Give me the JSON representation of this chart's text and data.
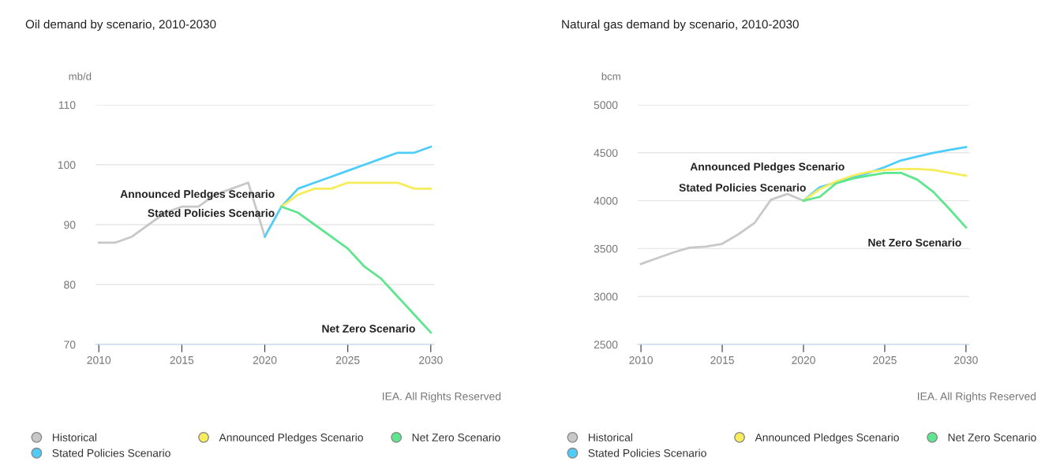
{
  "chart_data": [
    {
      "type": "line",
      "title": "Oil demand by scenario, 2010-2030",
      "ylabel": "mb/d",
      "xlim": [
        2009.8,
        2030.2
      ],
      "xticks": [
        2010,
        2015,
        2020,
        2025,
        2030
      ],
      "ylim": [
        70,
        110
      ],
      "yticks": [
        70,
        80,
        90,
        100,
        110
      ],
      "grid": "y",
      "legend": "bottom",
      "marker": "none",
      "line_style": "solid",
      "series": [
        {
          "name": "Historical",
          "color": "#c8c8c8",
          "x": [
            2010,
            2011,
            2012,
            2013,
            2014,
            2015,
            2016,
            2017,
            2018,
            2019,
            2020
          ],
          "values": [
            87,
            87,
            88,
            90,
            92,
            93,
            93,
            95,
            96,
            97,
            88
          ]
        },
        {
          "name": "Stated Policies Scenario",
          "color": "#4fcdfa",
          "x": [
            2020,
            2021,
            2022,
            2023,
            2024,
            2025,
            2026,
            2027,
            2028,
            2029,
            2030
          ],
          "values": [
            88,
            93,
            96,
            97,
            98,
            99,
            100,
            101,
            102,
            102,
            103
          ]
        },
        {
          "name": "Announced Pledges Scenario",
          "color": "#f7ec5a",
          "x": [
            2021,
            2022,
            2023,
            2024,
            2025,
            2026,
            2027,
            2028,
            2029,
            2030
          ],
          "values": [
            93,
            95,
            96,
            96,
            97,
            97,
            97,
            97,
            96,
            96
          ]
        },
        {
          "name": "Net Zero Scenario",
          "color": "#5ee68f",
          "x": [
            2021,
            2022,
            2023,
            2024,
            2025,
            2026,
            2027,
            2028,
            2029,
            2030
          ],
          "values": [
            93,
            92,
            90,
            88,
            86,
            83,
            81,
            78,
            75,
            72
          ]
        }
      ],
      "annotations": [
        {
          "text": "Announced Pledges Scenario",
          "x": 2021,
          "y": 93
        },
        {
          "text": "Stated Policies Scenario",
          "x": 2021,
          "y": 93
        },
        {
          "text": "Net Zero Scenario",
          "x": 2030,
          "y": 72
        },
        "IEA. All Rights Reserved"
      ]
    },
    {
      "type": "line",
      "title": "Natural gas demand by scenario, 2010-2030",
      "ylabel": "bcm",
      "xlim": [
        2009.8,
        2030.2
      ],
      "xticks": [
        2010,
        2015,
        2020,
        2025,
        2030
      ],
      "ylim": [
        2500,
        5000
      ],
      "yticks": [
        2500,
        3000,
        3500,
        4000,
        4500,
        5000
      ],
      "grid": "y",
      "legend": "bottom",
      "marker": "none",
      "line_style": "solid",
      "series": [
        {
          "name": "Historical",
          "color": "#c8c8c8",
          "x": [
            2010,
            2011,
            2012,
            2013,
            2014,
            2015,
            2016,
            2017,
            2018,
            2019,
            2020
          ],
          "values": [
            3340,
            3400,
            3460,
            3510,
            3520,
            3550,
            3650,
            3770,
            4010,
            4070,
            4000
          ]
        },
        {
          "name": "Stated Policies Scenario",
          "color": "#4fcdfa",
          "x": [
            2020,
            2021,
            2022,
            2023,
            2024,
            2025,
            2026,
            2027,
            2028,
            2029,
            2030
          ],
          "values": [
            4000,
            4140,
            4190,
            4240,
            4290,
            4350,
            4420,
            4460,
            4500,
            4530,
            4560
          ]
        },
        {
          "name": "Announced Pledges Scenario",
          "color": "#f7ec5a",
          "x": [
            2020,
            2021,
            2022,
            2023,
            2024,
            2025,
            2026,
            2027,
            2028,
            2029,
            2030
          ],
          "values": [
            4000,
            4120,
            4200,
            4260,
            4300,
            4320,
            4330,
            4330,
            4320,
            4290,
            4260
          ]
        },
        {
          "name": "Net Zero Scenario",
          "color": "#5ee68f",
          "x": [
            2020,
            2021,
            2022,
            2023,
            2024,
            2025,
            2026,
            2027,
            2028,
            2029,
            2030
          ],
          "values": [
            4000,
            4040,
            4180,
            4230,
            4260,
            4290,
            4290,
            4220,
            4090,
            3910,
            3720
          ]
        }
      ],
      "annotations": [
        {
          "text": "Announced Pledges Scenario",
          "x": 2022,
          "y": 4200
        },
        {
          "text": "Stated Policies Scenario",
          "x": 2020.3,
          "y": 4050
        },
        {
          "text": "Net Zero Scenario",
          "x": 2030,
          "y": 3720
        },
        "IEA. All Rights Reserved"
      ]
    }
  ]
}
